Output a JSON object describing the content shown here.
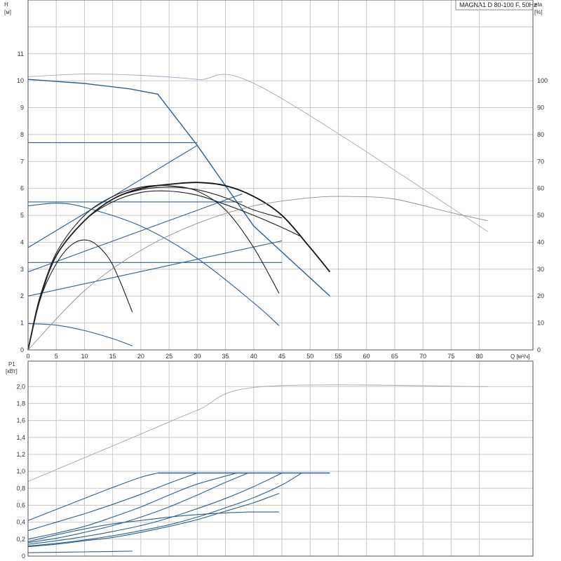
{
  "chart_data": [
    {
      "type": "line",
      "title": "MAGNA1 D 80-100 F, 50Hz",
      "xlabel": "Q [м³/ч]",
      "ylabel": "H [м]",
      "ylabel_right": "eta [%]",
      "x_ticks": [
        0,
        5,
        10,
        15,
        20,
        25,
        30,
        35,
        40,
        45,
        50,
        55,
        60,
        65,
        70,
        75,
        80
      ],
      "y_ticks": [
        0,
        1,
        2,
        3,
        4,
        5,
        6,
        7,
        8,
        9,
        10,
        11
      ],
      "y2_ticks": [
        0,
        10,
        20,
        30,
        40,
        50,
        60,
        70,
        80,
        90,
        100
      ],
      "xlim": [
        0,
        89.5
      ],
      "ylim": [
        0,
        13
      ],
      "y2lim": [
        0,
        130
      ],
      "grid": true,
      "series": [
        {
          "kind": "head-max-twin",
          "axis": "left",
          "color": "#9aa9c3",
          "x": [
            0,
            10,
            20,
            30,
            41.5,
            81.5
          ],
          "y": [
            10.15,
            10.25,
            10.2,
            10.05,
            9.75,
            4.4
          ]
        },
        {
          "kind": "head-max",
          "axis": "left",
          "color": "#2f5f91",
          "x": [
            0,
            10,
            18,
            23,
            30,
            40,
            53.5
          ],
          "y": [
            10.05,
            9.9,
            9.7,
            9.5,
            7.6,
            4.6,
            2.0
          ]
        },
        {
          "kind": "head-const",
          "axis": "left",
          "color": "#2f5f91",
          "x": [
            0,
            30
          ],
          "y": [
            7.7,
            7.7
          ]
        },
        {
          "kind": "head-const",
          "axis": "left",
          "color": "#2f5f91",
          "x": [
            0,
            38
          ],
          "y": [
            5.5,
            5.5
          ]
        },
        {
          "kind": "head-const",
          "axis": "left",
          "color": "#2f5f91",
          "x": [
            0,
            45
          ],
          "y": [
            3.25,
            3.25
          ]
        },
        {
          "kind": "head-prop",
          "axis": "left",
          "color": "#2f5f91",
          "x": [
            0,
            30
          ],
          "y": [
            3.8,
            7.6
          ]
        },
        {
          "kind": "head-prop",
          "axis": "left",
          "color": "#2f5f91",
          "x": [
            0,
            38
          ],
          "y": [
            2.9,
            5.8
          ]
        },
        {
          "kind": "head-prop",
          "axis": "left",
          "color": "#2f5f91",
          "x": [
            0,
            45
          ],
          "y": [
            2.0,
            4.05
          ]
        },
        {
          "kind": "head-min",
          "axis": "left",
          "color": "#2f5f91",
          "x": [
            0,
            5,
            10,
            15,
            18.5
          ],
          "y": [
            0.98,
            0.92,
            0.72,
            0.42,
            0.15
          ]
        },
        {
          "kind": "head-mid",
          "axis": "left",
          "color": "#2f5f91",
          "x": [
            0,
            5,
            10,
            20,
            30,
            40,
            44.5
          ],
          "y": [
            5.35,
            5.45,
            5.3,
            4.6,
            3.4,
            1.75,
            0.9
          ]
        },
        {
          "kind": "eta-max",
          "axis": "right",
          "color": "#111111",
          "x": [
            0,
            2,
            5,
            10,
            15,
            20,
            25,
            30,
            35,
            40,
            45,
            50,
            53.5
          ],
          "y": [
            0,
            18,
            35,
            48,
            56,
            60,
            61.5,
            62.2,
            61,
            57,
            50,
            38,
            29
          ]
        },
        {
          "kind": "eta",
          "axis": "right",
          "color": "#222222",
          "x": [
            0,
            2,
            5,
            10,
            15,
            20,
            25,
            30,
            35,
            40,
            45,
            48.5
          ],
          "y": [
            0,
            18,
            35,
            48,
            55,
            58.5,
            59,
            57.5,
            54,
            50,
            45.5,
            42
          ]
        },
        {
          "kind": "eta",
          "axis": "right",
          "color": "#222222",
          "x": [
            0,
            2,
            5,
            10,
            15,
            20,
            25,
            30,
            35,
            40,
            44.5
          ],
          "y": [
            0,
            18,
            36,
            50,
            57,
            60.5,
            61,
            59,
            52,
            38,
            21
          ]
        },
        {
          "kind": "eta",
          "axis": "right",
          "color": "#222222",
          "x": [
            0,
            2,
            5,
            8,
            11,
            14,
            16,
            18.5
          ],
          "y": [
            0,
            18,
            32,
            39.5,
            40.5,
            35,
            27,
            14
          ]
        },
        {
          "kind": "eta",
          "axis": "right",
          "color": "#222222",
          "x": [
            0,
            2,
            5,
            10,
            15,
            20,
            25,
            30,
            35,
            40,
            45
          ],
          "y": [
            0,
            19,
            35,
            48,
            56,
            59.5,
            60.5,
            59.5,
            56.5,
            52,
            49
          ]
        },
        {
          "kind": "eta-thin",
          "axis": "right",
          "color": "#8f8f8f",
          "x": [
            0,
            10,
            20,
            30,
            40,
            50,
            57,
            65,
            75,
            81.5
          ],
          "y": [
            0,
            22,
            37,
            47,
            53.5,
            56.5,
            57,
            56,
            51,
            48
          ]
        }
      ]
    },
    {
      "type": "line",
      "title": "",
      "xlabel": "",
      "ylabel": "P1 [кВт]",
      "x_ticks": [
        0,
        5,
        10,
        15,
        20,
        25,
        30,
        35,
        40,
        45,
        50,
        55,
        60,
        65,
        70,
        75,
        80
      ],
      "y_ticks": [
        "0",
        "0,2",
        "0,4",
        "0,6",
        "0,8",
        "1,0",
        "1,2",
        "1,4",
        "1,6",
        "1,8",
        "2,0"
      ],
      "xlim": [
        0,
        89.5
      ],
      "ylim": [
        0,
        2.3
      ],
      "grid": true,
      "series": [
        {
          "kind": "p1-max-twin",
          "color": "#9aa9c3",
          "x": [
            0,
            10,
            20,
            30,
            41.5,
            81.5
          ],
          "y": [
            0.88,
            1.16,
            1.44,
            1.72,
            2.0,
            2.0
          ]
        },
        {
          "kind": "p1-limit",
          "color": "#2f5f91",
          "x": [
            23,
            53.5
          ],
          "y": [
            0.98,
            0.98
          ]
        },
        {
          "kind": "p1",
          "color": "#2f5f91",
          "x": [
            0,
            5,
            10,
            15,
            20,
            23
          ],
          "y": [
            0.42,
            0.55,
            0.68,
            0.81,
            0.93,
            0.98
          ]
        },
        {
          "kind": "p1",
          "color": "#2f5f91",
          "x": [
            0,
            5,
            10,
            15,
            20,
            25,
            30
          ],
          "y": [
            0.3,
            0.4,
            0.5,
            0.61,
            0.73,
            0.86,
            0.98
          ]
        },
        {
          "kind": "p1",
          "color": "#2f5f91",
          "x": [
            0,
            5,
            10,
            15,
            20,
            25,
            30,
            37
          ],
          "y": [
            0.2,
            0.27,
            0.35,
            0.46,
            0.58,
            0.72,
            0.85,
            0.98
          ]
        },
        {
          "kind": "p1",
          "color": "#2f5f91",
          "x": [
            0,
            5,
            10,
            15,
            20,
            25,
            30,
            35,
            39
          ],
          "y": [
            0.16,
            0.21,
            0.28,
            0.36,
            0.46,
            0.58,
            0.72,
            0.87,
            0.98
          ]
        },
        {
          "kind": "p1",
          "color": "#2f5f91",
          "x": [
            0,
            5,
            10,
            15,
            20,
            25,
            30,
            35,
            40,
            45
          ],
          "y": [
            0.14,
            0.18,
            0.23,
            0.29,
            0.36,
            0.45,
            0.56,
            0.68,
            0.82,
            0.98
          ]
        },
        {
          "kind": "p1",
          "color": "#2f5f91",
          "x": [
            0,
            5,
            10,
            15,
            20,
            25,
            30,
            35,
            40,
            45,
            48.5
          ],
          "y": [
            0.12,
            0.15,
            0.19,
            0.24,
            0.3,
            0.37,
            0.46,
            0.57,
            0.69,
            0.84,
            0.98
          ]
        },
        {
          "kind": "p1",
          "color": "#2f5f91",
          "x": [
            0,
            5,
            10,
            15,
            20,
            25,
            30,
            35,
            40,
            44.5
          ],
          "y": [
            0.11,
            0.14,
            0.18,
            0.22,
            0.28,
            0.35,
            0.43,
            0.53,
            0.63,
            0.74
          ]
        },
        {
          "kind": "p1",
          "color": "#2f5f91",
          "x": [
            0,
            5,
            10,
            15,
            20,
            25,
            30,
            35,
            40,
            44.5
          ],
          "y": [
            0.17,
            0.25,
            0.32,
            0.38,
            0.42,
            0.46,
            0.49,
            0.51,
            0.52,
            0.52
          ]
        },
        {
          "kind": "p1-min",
          "color": "#2f5f91",
          "x": [
            0,
            5,
            10,
            15,
            18.5
          ],
          "y": [
            0.04,
            0.045,
            0.05,
            0.055,
            0.058
          ]
        }
      ]
    }
  ]
}
